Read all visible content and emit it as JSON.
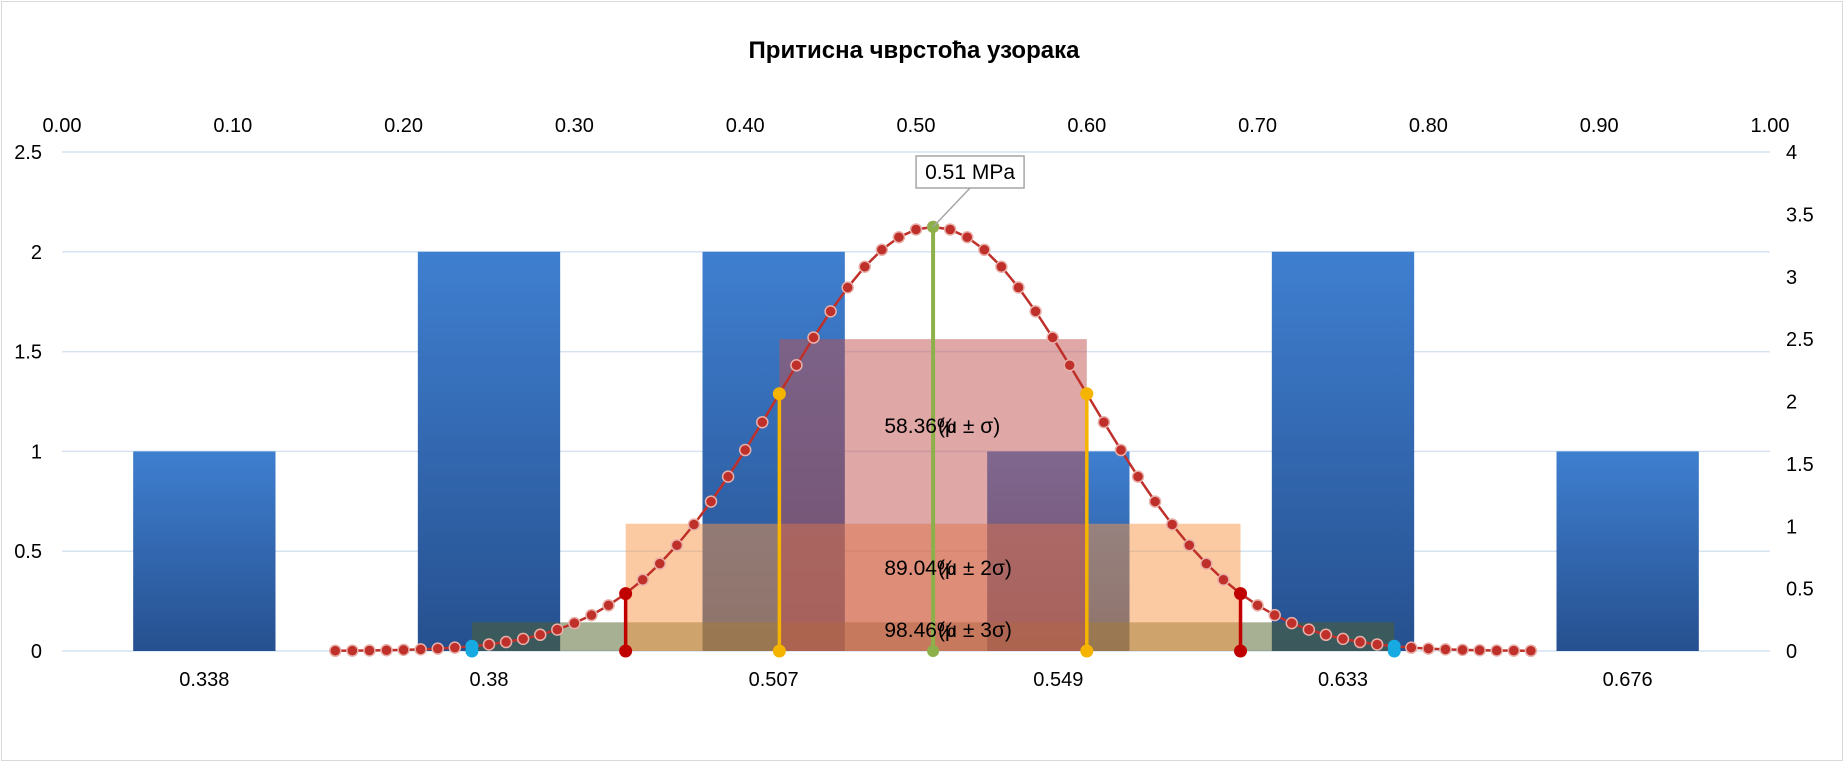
{
  "chart_data": {
    "type": "bar",
    "title": "Притисна чврстоћа узорака",
    "categories": [
      "0.338",
      "0.38",
      "0.507",
      "0.549",
      "0.633",
      "0.676"
    ],
    "values": [
      1,
      2,
      2,
      1,
      2,
      1
    ],
    "ylim": [
      0,
      2.5
    ],
    "y_ticks": [
      "0",
      "0.5",
      "1",
      "1.5",
      "2",
      "2.5"
    ],
    "top_axis": {
      "range": [
        0,
        1
      ],
      "ticks": [
        "0.00",
        "0.10",
        "0.20",
        "0.30",
        "0.40",
        "0.50",
        "0.60",
        "0.70",
        "0.80",
        "0.90",
        "1.00"
      ]
    },
    "right_axis": {
      "range": [
        0,
        4
      ],
      "ticks": [
        "0",
        "0.5",
        "1",
        "1.5",
        "2",
        "2.5",
        "3",
        "3.5",
        "4"
      ]
    },
    "normal_curve": {
      "mean": 0.51,
      "sigma": 0.09,
      "x_start": 0.16,
      "x_end": 0.86,
      "points": 71,
      "peak": 3.4
    },
    "mean_label": "0.51 MPa",
    "intervals": [
      {
        "k": 1,
        "percent": "58.36%",
        "label": "(μ ± σ)",
        "low": 0.42,
        "high": 0.6,
        "height": 2.5,
        "color": "#c0504d",
        "line_color": "#f5b400"
      },
      {
        "k": 2,
        "percent": "89.04%",
        "label": "(μ ± 2σ)",
        "low": 0.33,
        "high": 0.69,
        "height": 1.02,
        "color": "#f79646",
        "line_color": "#c00000"
      },
      {
        "k": 3,
        "percent": "98.46%",
        "label": "(μ ± 3σ)",
        "low": 0.24,
        "high": 0.78,
        "height": 0.23,
        "color": "#4f6228",
        "line_color": "#17a9e1"
      }
    ],
    "colors": {
      "bar_top": "#3f7fd0",
      "bar_bottom": "#26508f",
      "curve": "#c0302a",
      "mean_line": "#8db04a",
      "grid": "#d6e3f1"
    }
  }
}
